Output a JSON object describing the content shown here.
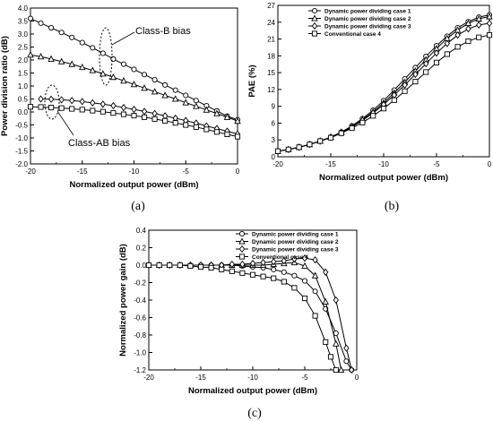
{
  "chart_data": [
    {
      "panel": "(a)",
      "type": "line",
      "title": "",
      "xlabel": "Normalized output power (dBm)",
      "ylabel": "Power division ratio (dB)",
      "xlim": [
        -20,
        0
      ],
      "ylim": [
        -2.0,
        4.0
      ],
      "xticks": [
        -20,
        -15,
        -10,
        -5,
        0
      ],
      "xtick_labels": [
        "-20",
        "-15",
        "-10",
        "-5",
        "0"
      ],
      "yticks": [
        -2.0,
        -1.5,
        -1.0,
        -0.5,
        0.0,
        0.5,
        1.0,
        1.5,
        2.0,
        2.5,
        3.0,
        3.5,
        4.0
      ],
      "ytick_labels": [
        "-2.0",
        "-1.5",
        "-1.0",
        "-0.5",
        "0.0",
        "0.5",
        "1.0",
        "1.5",
        "2.0",
        "2.5",
        "3.0",
        "3.5",
        "4.0"
      ],
      "grid": false,
      "annotations": [
        "Class-B bias",
        "Class-AB bias"
      ],
      "series": [
        {
          "marker": "circle",
          "x": [
            -20,
            -19,
            -18,
            -17,
            -16,
            -15,
            -14,
            -13,
            -12,
            -11,
            -10,
            -9,
            -8,
            -7,
            -6,
            -5,
            -4,
            -3,
            -2,
            -1,
            0
          ],
          "y": [
            3.6,
            3.42,
            3.24,
            3.06,
            2.87,
            2.67,
            2.47,
            2.26,
            2.04,
            1.84,
            1.64,
            1.44,
            1.24,
            1.04,
            0.84,
            0.64,
            0.44,
            0.24,
            0.04,
            -0.16,
            -0.3
          ]
        },
        {
          "marker": "triangle",
          "x": [
            -20,
            -19,
            -18,
            -17,
            -16,
            -15,
            -14,
            -13,
            -12,
            -11,
            -10,
            -9,
            -8,
            -7,
            -6,
            -5,
            -4,
            -3,
            -2,
            -1,
            0
          ],
          "y": [
            2.2,
            2.13,
            2.04,
            1.94,
            1.84,
            1.72,
            1.6,
            1.47,
            1.34,
            1.2,
            1.06,
            0.92,
            0.78,
            0.64,
            0.5,
            0.36,
            0.22,
            0.08,
            -0.06,
            -0.2,
            -0.35
          ]
        },
        {
          "marker": "diamond",
          "x": [
            -19,
            -18,
            -17,
            -16,
            -15,
            -14,
            -13,
            -12,
            -11,
            -10,
            -9,
            -8,
            -7,
            -6,
            -5,
            -4,
            -3,
            -2,
            -1,
            0
          ],
          "y": [
            0.5,
            0.49,
            0.47,
            0.44,
            0.4,
            0.35,
            0.3,
            0.24,
            0.17,
            0.1,
            0.02,
            -0.06,
            -0.15,
            -0.24,
            -0.33,
            -0.43,
            -0.54,
            -0.64,
            -0.74,
            -0.85
          ]
        },
        {
          "marker": "square",
          "x": [
            -20,
            -19,
            -18,
            -17,
            -16,
            -15,
            -14,
            -13,
            -12,
            -11,
            -10,
            -9,
            -8,
            -7,
            -6,
            -5,
            -4,
            -3,
            -2,
            -1,
            0
          ],
          "y": [
            0.2,
            0.19,
            0.17,
            0.15,
            0.12,
            0.09,
            0.05,
            0.01,
            -0.04,
            -0.09,
            -0.14,
            -0.2,
            -0.27,
            -0.34,
            -0.42,
            -0.5,
            -0.58,
            -0.67,
            -0.77,
            -0.86,
            -0.95
          ]
        }
      ]
    },
    {
      "panel": "(b)",
      "type": "line",
      "title": "",
      "xlabel": "Normalized output power (dBm)",
      "ylabel": "PAE (%)",
      "xlim": [
        -20,
        0
      ],
      "ylim": [
        0,
        27
      ],
      "xticks": [
        -20,
        -15,
        -10,
        -5,
        0
      ],
      "xtick_labels": [
        "-20",
        "-15",
        "-10",
        "-5",
        "0"
      ],
      "yticks": [
        0,
        3,
        6,
        9,
        12,
        15,
        18,
        21,
        24,
        27
      ],
      "ytick_labels": [
        "0",
        "3",
        "6",
        "9",
        "12",
        "15",
        "18",
        "21",
        "24",
        "27"
      ],
      "grid": false,
      "legend_position": "top-left",
      "legend": [
        "Dynamic power dividing case 1",
        "Dynamic power dividing case 2",
        "Dynamic power dividing case 3",
        "Conventional case 4"
      ],
      "series": [
        {
          "name": "Dynamic power dividing case 1",
          "marker": "circle",
          "x": [
            -20,
            -19,
            -18,
            -17,
            -16,
            -15,
            -14,
            -13,
            -12,
            -11,
            -10,
            -9,
            -8,
            -7,
            -6,
            -5,
            -4,
            -3,
            -2,
            -1,
            0
          ],
          "y": [
            1.0,
            1.3,
            1.7,
            2.2,
            2.8,
            3.5,
            4.4,
            5.5,
            6.8,
            8.3,
            10.0,
            11.9,
            13.9,
            15.9,
            17.9,
            19.8,
            21.5,
            23.0,
            24.1,
            24.9,
            25.3
          ]
        },
        {
          "name": "Dynamic power dividing case 2",
          "marker": "triangle",
          "x": [
            -20,
            -19,
            -18,
            -17,
            -16,
            -15,
            -14,
            -13,
            -12,
            -11,
            -10,
            -9,
            -8,
            -7,
            -6,
            -5,
            -4,
            -3,
            -2,
            -1,
            0
          ],
          "y": [
            1.0,
            1.3,
            1.7,
            2.2,
            2.8,
            3.5,
            4.4,
            5.4,
            6.6,
            8.0,
            9.6,
            11.4,
            13.3,
            15.3,
            17.3,
            19.3,
            21.1,
            22.6,
            23.8,
            24.6,
            25.0
          ]
        },
        {
          "name": "Dynamic power dividing case 3",
          "marker": "diamond",
          "x": [
            -20,
            -19,
            -18,
            -17,
            -16,
            -15,
            -14,
            -13,
            -12,
            -11,
            -10,
            -9,
            -8,
            -7,
            -6,
            -5,
            -4,
            -3,
            -2,
            -1,
            0
          ],
          "y": [
            1.0,
            1.3,
            1.7,
            2.2,
            2.8,
            3.5,
            4.3,
            5.3,
            6.5,
            7.8,
            9.3,
            11.0,
            12.8,
            14.7,
            16.6,
            18.5,
            20.2,
            21.7,
            22.8,
            23.5,
            23.8
          ]
        },
        {
          "name": "Conventional case 4",
          "marker": "square",
          "x": [
            -20,
            -19,
            -18,
            -17,
            -16,
            -15,
            -14,
            -13,
            -12,
            -11,
            -10,
            -9,
            -8,
            -7,
            -6,
            -5,
            -4,
            -3,
            -2,
            -1,
            0
          ],
          "y": [
            1.0,
            1.3,
            1.7,
            2.2,
            2.8,
            3.4,
            4.2,
            5.1,
            6.1,
            7.3,
            8.6,
            10.1,
            11.7,
            13.4,
            15.1,
            16.8,
            18.3,
            19.6,
            20.6,
            21.3,
            21.7
          ]
        }
      ]
    },
    {
      "panel": "(c)",
      "type": "line",
      "title": "",
      "xlabel": "Normalized output power (dBm)",
      "ylabel": "Normalized power gain (dB)",
      "xlim": [
        -20,
        0
      ],
      "ylim": [
        -1.2,
        0.4
      ],
      "xticks": [
        -20,
        -15,
        -10,
        -5,
        0
      ],
      "xtick_labels": [
        "-20",
        "-15",
        "-10",
        "-5",
        "0"
      ],
      "yticks": [
        -1.2,
        -1.0,
        -0.8,
        -0.6,
        -0.4,
        -0.2,
        0.0,
        0.2,
        0.4
      ],
      "ytick_labels": [
        "-1.2",
        "-1.0",
        "-0.8",
        "-0.6",
        "-0.4",
        "-0.2",
        "0.0",
        "0.2",
        "0.4"
      ],
      "grid": false,
      "legend_position": "top-right",
      "legend": [
        "Dynamic power dividing case 1",
        "Dynamic power dividing case 2",
        "Dynamic power dividing case 3",
        "Conventional case 4"
      ],
      "series": [
        {
          "name": "Dynamic power dividing case 1",
          "marker": "circle",
          "x": [
            -20,
            -19,
            -18,
            -17,
            -16,
            -15,
            -14,
            -13,
            -12,
            -11,
            -10,
            -9,
            -8,
            -7,
            -6,
            -5,
            -4,
            -3,
            -2,
            -1,
            -0.5
          ],
          "y": [
            0.0,
            0.0,
            0.0,
            0.0,
            0.0,
            0.0,
            0.0,
            0.0,
            0.0,
            -0.01,
            -0.02,
            -0.03,
            -0.05,
            -0.08,
            -0.12,
            -0.18,
            -0.3,
            -0.5,
            -0.78,
            -1.1,
            -1.2
          ]
        },
        {
          "name": "Dynamic power dividing case 2",
          "marker": "triangle",
          "x": [
            -20,
            -19,
            -18,
            -17,
            -16,
            -15,
            -14,
            -13,
            -12,
            -11,
            -10,
            -9,
            -8,
            -7,
            -6,
            -5,
            -4,
            -3,
            -2,
            -1.5
          ],
          "y": [
            0.0,
            0.0,
            0.0,
            0.0,
            0.0,
            0.0,
            0.0,
            0.0,
            0.0,
            0.0,
            0.0,
            0.0,
            0.01,
            0.02,
            0.03,
            -0.01,
            -0.12,
            -0.42,
            -0.9,
            -1.2
          ]
        },
        {
          "name": "Dynamic power dividing case 3",
          "marker": "diamond",
          "x": [
            -20,
            -19,
            -18,
            -17,
            -16,
            -15,
            -14,
            -13,
            -12,
            -11,
            -10,
            -9,
            -8,
            -7,
            -6,
            -5,
            -4,
            -3,
            -2,
            -1,
            -0.5
          ],
          "y": [
            0.0,
            0.0,
            0.0,
            0.0,
            0.0,
            0.0,
            0.0,
            0.0,
            0.01,
            0.01,
            0.02,
            0.03,
            0.04,
            0.05,
            0.07,
            0.08,
            0.06,
            -0.08,
            -0.4,
            -0.95,
            -1.2
          ]
        },
        {
          "name": "Conventional case 4",
          "marker": "square",
          "x": [
            -20,
            -19,
            -18,
            -17,
            -16,
            -15,
            -14,
            -13,
            -12,
            -11,
            -10,
            -9,
            -8,
            -7,
            -6,
            -5,
            -4,
            -3,
            -2.5,
            -2
          ],
          "y": [
            0.0,
            0.0,
            0.0,
            0.0,
            -0.01,
            -0.02,
            -0.03,
            -0.05,
            -0.07,
            -0.09,
            -0.11,
            -0.13,
            -0.15,
            -0.19,
            -0.26,
            -0.38,
            -0.58,
            -0.88,
            -1.05,
            -1.2
          ]
        }
      ]
    }
  ],
  "captions": [
    "(a)",
    "(b)",
    "(c)"
  ]
}
